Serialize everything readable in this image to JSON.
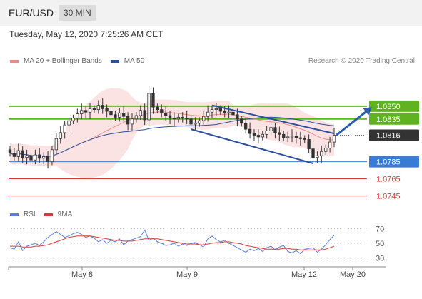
{
  "header": {
    "symbol": "EUR/USD",
    "timeframe": "30 MIN",
    "timestamp": "Tuesday, May 12, 2020 7:25:26 AM CET"
  },
  "legend": {
    "items": [
      {
        "label": "MA 20 + Bollinger Bands",
        "color": "#f08a8a"
      },
      {
        "label": "MA 50",
        "color": "#2b4f9e"
      }
    ],
    "credit": "Research © 2020 Trading Central"
  },
  "rsi_legend": {
    "items": [
      {
        "label": "RSI",
        "color": "#5b7fd6"
      },
      {
        "label": "9MA",
        "color": "#d63b3b"
      }
    ]
  },
  "chart_data": [
    {
      "type": "candlestick",
      "instrument": "EUR/USD",
      "interval": "30 MIN",
      "ylim": [
        1.0732,
        1.0895
      ],
      "x_tick_labels": [
        "May 8",
        "May 9",
        "May 12",
        "May 20"
      ],
      "current_price": {
        "value": 1.0816,
        "label": "1.0816",
        "color": "#333333"
      },
      "levels": [
        {
          "value": 1.085,
          "label": "1.0850",
          "color": "#5fb320",
          "style": "resistance",
          "label_style": "box"
        },
        {
          "value": 1.0835,
          "label": "1.0835",
          "color": "#5fb320",
          "style": "resistance",
          "label_style": "box"
        },
        {
          "value": 1.0785,
          "label": "1.0785",
          "color": "#3a7bd5",
          "style": "pivot",
          "label_style": "box"
        },
        {
          "value": 1.0765,
          "label": "1.0765",
          "color": "#d63b3b",
          "style": "support",
          "label_style": "text"
        },
        {
          "value": 1.0745,
          "label": "1.0745",
          "color": "#d63b3b",
          "style": "support",
          "label_style": "text"
        }
      ],
      "channel": {
        "color": "#2b4f9e",
        "upper": [
          {
            "i": 48,
            "y": 1.0851
          },
          {
            "i": 77,
            "y": 1.0818
          }
        ],
        "lower": [
          {
            "i": 43,
            "y": 1.0823
          },
          {
            "i": 72,
            "y": 1.0783
          }
        ]
      },
      "arrow": {
        "color": "#2b5ca8",
        "from": {
          "i": 77,
          "y": 1.0816
        },
        "to": {
          "i": 86,
          "y": 1.0849
        }
      },
      "closes": [
        1.0795,
        1.0791,
        1.0798,
        1.079,
        1.0792,
        1.0787,
        1.0793,
        1.0789,
        1.0791,
        1.0785,
        1.0799,
        1.0812,
        1.0819,
        1.0828,
        1.0833,
        1.0836,
        1.0841,
        1.0845,
        1.0843,
        1.0847,
        1.0846,
        1.0851,
        1.0847,
        1.0844,
        1.084,
        1.0837,
        1.0842,
        1.0838,
        1.0829,
        1.0835,
        1.0839,
        1.0845,
        1.0834,
        1.0865,
        1.0849,
        1.0846,
        1.0842,
        1.0839,
        1.0836,
        1.0835,
        1.0837,
        1.0836,
        1.0835,
        1.0829,
        1.083,
        1.0833,
        1.0838,
        1.0843,
        1.0846,
        1.0847,
        1.0844,
        1.0842,
        1.0843,
        1.084,
        1.0835,
        1.083,
        1.0823,
        1.0818,
        1.0816,
        1.0814,
        1.0817,
        1.0821,
        1.0825,
        1.0819,
        1.0817,
        1.0813,
        1.0814,
        1.0815,
        1.0813,
        1.0812,
        1.0811,
        1.08,
        1.079,
        1.0792,
        1.0797,
        1.0801,
        1.0808,
        1.0816
      ]
    },
    {
      "type": "line",
      "title": "RSI",
      "ylim": [
        20,
        80
      ],
      "y_ticks": [
        30,
        50,
        70
      ],
      "ref_lines": [
        70,
        50,
        30
      ],
      "series": [
        {
          "name": "RSI",
          "color": "#5b7fd6",
          "values": [
            44,
            42,
            52,
            40,
            46,
            48,
            50,
            47,
            52,
            58,
            62,
            66,
            62,
            58,
            60,
            63,
            65,
            62,
            58,
            60,
            57,
            52,
            55,
            50,
            54,
            52,
            56,
            48,
            53,
            55,
            57,
            59,
            68,
            54,
            57,
            52,
            50,
            47,
            48,
            50,
            46,
            49,
            47,
            50,
            51,
            48,
            45,
            56,
            60,
            55,
            52,
            54,
            50,
            47,
            44,
            41,
            38,
            42,
            40,
            43,
            39,
            44,
            46,
            41,
            45,
            47,
            39,
            37,
            40,
            36,
            42,
            43,
            44,
            38,
            42,
            48,
            55,
            61
          ]
        },
        {
          "name": "9MA",
          "color": "#d63b3b",
          "values": [
            46,
            46,
            46,
            45,
            45,
            45,
            46,
            46,
            47,
            48,
            50,
            52,
            54,
            56,
            58,
            59,
            60,
            60,
            60,
            60,
            59,
            58,
            57,
            56,
            55,
            54,
            54,
            53,
            53,
            53,
            54,
            55,
            56,
            56,
            56,
            56,
            55,
            54,
            53,
            52,
            51,
            50,
            49,
            49,
            49,
            48,
            48,
            49,
            50,
            51,
            51,
            52,
            52,
            51,
            50,
            49,
            47,
            46,
            45,
            44,
            43,
            42,
            42,
            42,
            42,
            43,
            43,
            42,
            42,
            41,
            41,
            41,
            41,
            41,
            41,
            42,
            44,
            46
          ]
        }
      ]
    }
  ]
}
